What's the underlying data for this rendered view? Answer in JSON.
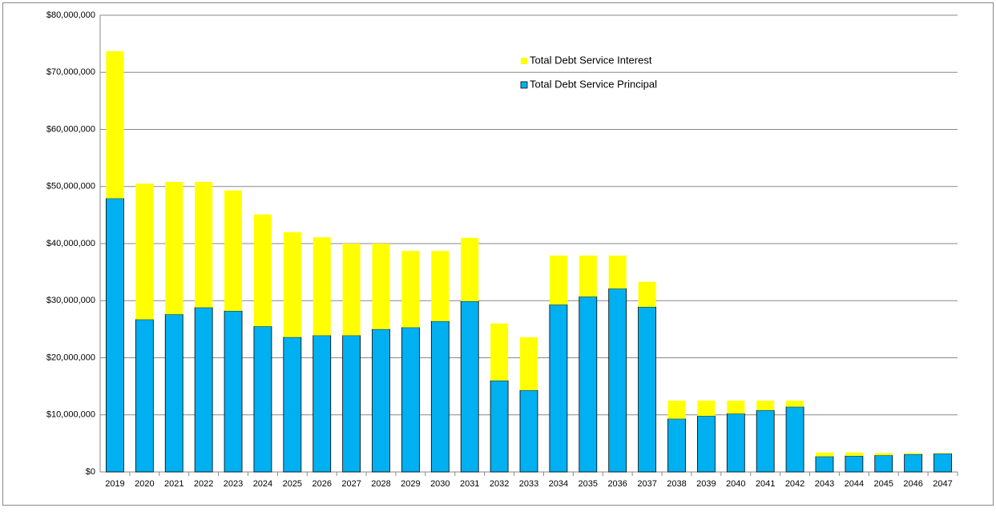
{
  "chart_data": {
    "type": "stacked_bar",
    "categories": [
      "2019",
      "2020",
      "2021",
      "2022",
      "2023",
      "2024",
      "2025",
      "2026",
      "2027",
      "2028",
      "2029",
      "2030",
      "2031",
      "2032",
      "2033",
      "2034",
      "2035",
      "2036",
      "2037",
      "2038",
      "2039",
      "2040",
      "2041",
      "2042",
      "2043",
      "2044",
      "2045",
      "2046",
      "2047"
    ],
    "series": [
      {
        "name": "Total Debt Service Principal",
        "color": "#00b0f0",
        "values": [
          47900000,
          26700000,
          27600000,
          28800000,
          28200000,
          25500000,
          23600000,
          23900000,
          23900000,
          25000000,
          25300000,
          26400000,
          29900000,
          16000000,
          14300000,
          29300000,
          30700000,
          32100000,
          28900000,
          9300000,
          9800000,
          10200000,
          10800000,
          11400000,
          2700000,
          2800000,
          2900000,
          3100000,
          3200000
        ]
      },
      {
        "name": "Total Debt Service Interest",
        "color": "#ffff00",
        "values": [
          25800000,
          23800000,
          23200000,
          22000000,
          21100000,
          19600000,
          18400000,
          17200000,
          16100000,
          15000000,
          13400000,
          12300000,
          11100000,
          10000000,
          9300000,
          8600000,
          7200000,
          5800000,
          4400000,
          3200000,
          2700000,
          2300000,
          1700000,
          1100000,
          700000,
          600000,
          400000,
          200000,
          100000
        ]
      }
    ],
    "ylim": [
      0,
      80000000
    ],
    "yticks": [
      {
        "value": 0,
        "label": "$0"
      },
      {
        "value": 10000000,
        "label": "$10,000,000"
      },
      {
        "value": 20000000,
        "label": "$20,000,000"
      },
      {
        "value": 30000000,
        "label": "$30,000,000"
      },
      {
        "value": 40000000,
        "label": "$40,000,000"
      },
      {
        "value": 50000000,
        "label": "$50,000,000"
      },
      {
        "value": 60000000,
        "label": "$60,000,000"
      },
      {
        "value": 70000000,
        "label": "$70,000,000"
      },
      {
        "value": 80000000,
        "label": "$80,000,000"
      }
    ],
    "grid": true,
    "legend": "top"
  }
}
